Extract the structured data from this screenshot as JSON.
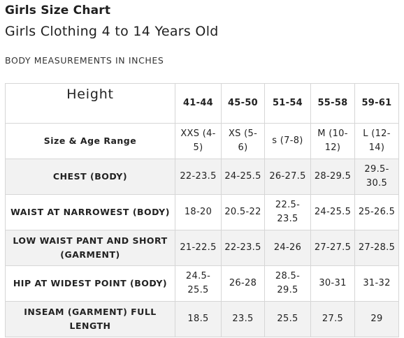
{
  "title": "Girls Size Chart",
  "subtitle": "Girls Clothing 4 to 14 Years Old",
  "section_label": "BODY MEASUREMENTS IN INCHES",
  "table": {
    "corner_label": "Height",
    "columns": [
      "41-44",
      "45-50",
      "51-54",
      "55-58",
      "59-61"
    ],
    "rows": [
      {
        "label": "Size & Age Range",
        "values": [
          "XXS (4-5)",
          "XS (5-6)",
          "s (7-8)",
          "M (10-12)",
          "L (12-14)"
        ]
      },
      {
        "label": "CHEST (BODY)",
        "values": [
          "22-23.5",
          "24-25.5",
          "26-27.5",
          "28-29.5",
          "29.5-30.5"
        ]
      },
      {
        "label": "WAIST AT NARROWEST (BODY)",
        "values": [
          "18-20",
          "20.5-22",
          "22.5-23.5",
          "24-25.5",
          "25-26.5"
        ]
      },
      {
        "label": "LOW WAIST PANT AND SHORT (GARMENT)",
        "values": [
          "21-22.5",
          "22-23.5",
          "24-26",
          "27-27.5",
          "27-28.5"
        ]
      },
      {
        "label": "HIP AT WIDEST POINT (BODY)",
        "values": [
          "24.5-25.5",
          "26-28",
          "28.5-29.5",
          "30-31",
          "31-32"
        ]
      },
      {
        "label": "INSEAM (GARMENT) FULL LENGTH",
        "values": [
          "18.5",
          "23.5",
          "25.5",
          "27.5",
          "29"
        ]
      }
    ]
  }
}
